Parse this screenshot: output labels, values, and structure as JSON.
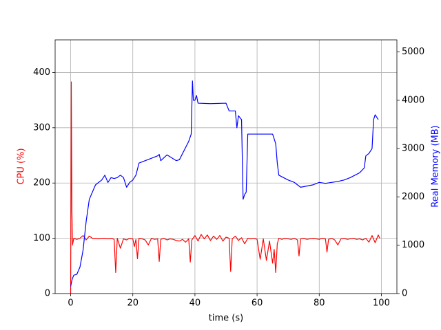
{
  "chart_data": {
    "type": "line",
    "xlabel": "time (s)",
    "ylabel": "CPU (%)",
    "y2label": "Real Memory (MB)",
    "ylabel_color": "#ff0000",
    "y2label_color": "#0000ff",
    "xlim": [
      -5,
      105
    ],
    "xticks": [
      0,
      20,
      40,
      60,
      80,
      100
    ],
    "ylim": [
      0,
      459
    ],
    "yticks": [
      0,
      100,
      200,
      300,
      400
    ],
    "y2lim": [
      0,
      5250
    ],
    "y2ticks": [
      0,
      1000,
      2000,
      3000,
      4000,
      5000
    ],
    "grid": true,
    "series": [
      {
        "color": "#ff0000",
        "x": [
          0,
          0.2,
          0.4,
          0.6,
          1,
          2,
          3,
          4,
          5,
          6,
          7,
          8,
          9,
          10,
          11,
          12,
          13,
          14,
          14.5,
          15,
          16,
          17,
          18,
          19,
          20,
          20.5,
          21,
          21.5,
          22,
          23,
          24,
          25,
          26,
          27,
          28,
          28.5,
          29,
          30,
          31,
          32,
          33,
          34,
          35,
          36,
          37,
          38,
          38.5,
          39,
          40,
          41,
          42,
          43,
          44,
          45,
          46,
          47,
          48,
          49,
          50,
          51,
          51.5,
          52,
          53,
          54,
          55,
          56,
          57,
          58,
          59,
          60,
          61,
          62,
          63,
          64,
          65,
          65.5,
          66,
          66.5,
          67,
          68,
          69,
          70,
          71,
          72,
          73,
          73.5,
          74,
          75,
          76,
          77,
          78,
          79,
          80,
          81,
          82,
          82.5,
          83,
          84,
          85,
          86,
          87,
          88,
          89,
          90,
          91,
          92,
          93,
          94,
          95,
          96,
          97,
          98,
          99,
          99.5
        ],
        "values": [
          0,
          383,
          150,
          88,
          100,
          98,
          100,
          105,
          97,
          104,
          100,
          100,
          99,
          100,
          100,
          99,
          100,
          98,
          38,
          100,
          82,
          99,
          97,
          100,
          99,
          85,
          98,
          63,
          100,
          99,
          97,
          88,
          100,
          98,
          99,
          58,
          98,
          100,
          97,
          99,
          98,
          96,
          95,
          98,
          93,
          99,
          57,
          97,
          105,
          95,
          107,
          99,
          106,
          96,
          104,
          98,
          105,
          95,
          102,
          100,
          40,
          99,
          104,
          96,
          101,
          90,
          100,
          99,
          100,
          98,
          62,
          99,
          60,
          95,
          55,
          80,
          38,
          90,
          100,
          98,
          100,
          99,
          98,
          100,
          97,
          68,
          99,
          100,
          98,
          99,
          100,
          99,
          98,
          100,
          99,
          75,
          98,
          100,
          97,
          88,
          99,
          100,
          98,
          99,
          100,
          98,
          99,
          97,
          100,
          93,
          105,
          92,
          106,
          100
        ]
      },
      {
        "color": "#0000ff",
        "axis": "y2",
        "x": [
          0,
          0.5,
          1,
          2,
          3,
          4,
          5,
          6,
          7,
          8,
          9,
          10,
          11,
          12,
          13,
          14,
          15,
          16,
          17,
          18,
          19,
          20,
          21,
          22,
          24,
          26,
          28,
          28.5,
          29,
          31,
          34,
          35,
          38,
          38.8,
          39.2,
          39.5,
          40,
          40.5,
          41,
          45,
          50,
          51,
          53,
          53.5,
          54,
          55,
          55.5,
          56,
          56.5,
          57,
          60,
          65,
          66,
          66.5,
          67,
          70,
          72,
          74,
          78,
          80,
          82,
          84,
          86,
          88,
          90,
          93,
          94.5,
          95,
          96,
          97,
          97.5,
          98,
          99
        ],
        "values": [
          150,
          300,
          380,
          400,
          550,
          900,
          1500,
          1950,
          2100,
          2250,
          2300,
          2350,
          2450,
          2300,
          2400,
          2380,
          2400,
          2450,
          2400,
          2200,
          2300,
          2350,
          2450,
          2700,
          2750,
          2800,
          2850,
          2880,
          2750,
          2870,
          2750,
          2770,
          3150,
          3300,
          4400,
          4000,
          4000,
          4100,
          3940,
          3930,
          3940,
          3780,
          3780,
          3430,
          3680,
          3600,
          1950,
          2050,
          2100,
          3300,
          3300,
          3300,
          3100,
          2700,
          2450,
          2350,
          2300,
          2200,
          2250,
          2300,
          2280,
          2300,
          2320,
          2350,
          2400,
          2500,
          2600,
          2850,
          2900,
          3000,
          3600,
          3700,
          3600
        ]
      }
    ]
  }
}
